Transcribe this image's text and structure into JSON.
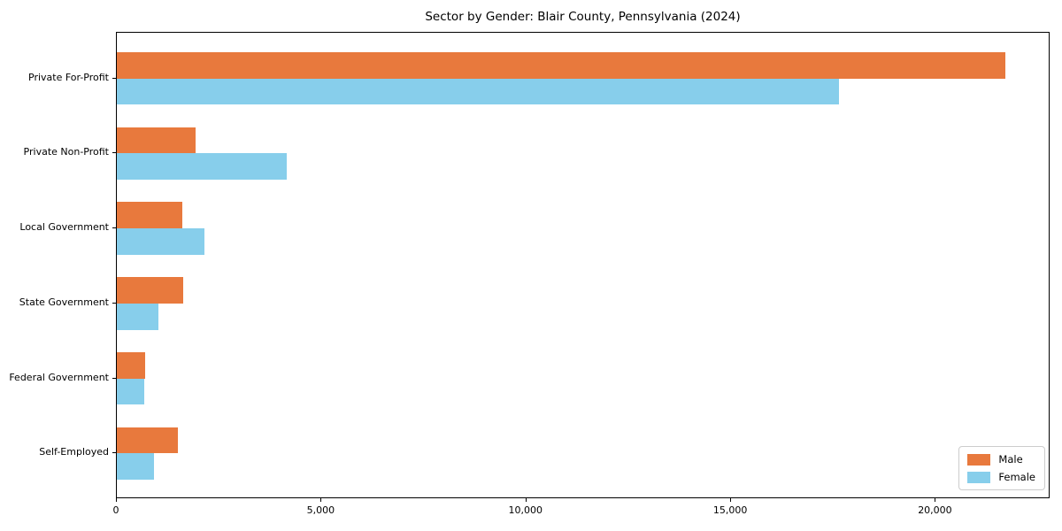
{
  "chart_data": {
    "type": "bar",
    "orientation": "horizontal",
    "title": "Sector by Gender: Blair County, Pennsylvania (2024)",
    "categories": [
      "Private For-Profit",
      "Private Non-Profit",
      "Local Government",
      "State Government",
      "Federal Government",
      "Self-Employed"
    ],
    "series": [
      {
        "name": "Male",
        "color": "#E8793D",
        "values": [
          21700,
          1930,
          1610,
          1620,
          690,
          1490
        ]
      },
      {
        "name": "Female",
        "color": "#87CEEB",
        "values": [
          17630,
          4160,
          2150,
          1010,
          670,
          900
        ]
      }
    ],
    "xlabel": "",
    "ylabel": "",
    "xlim": [
      0,
      22800
    ],
    "xticks": [
      0,
      5000,
      10000,
      15000,
      20000
    ],
    "xtick_labels": [
      "0",
      "5,000",
      "10,000",
      "15,000",
      "20,000"
    ],
    "grid": false,
    "legend": {
      "position": "lower right",
      "entries": [
        "Male",
        "Female"
      ]
    }
  }
}
